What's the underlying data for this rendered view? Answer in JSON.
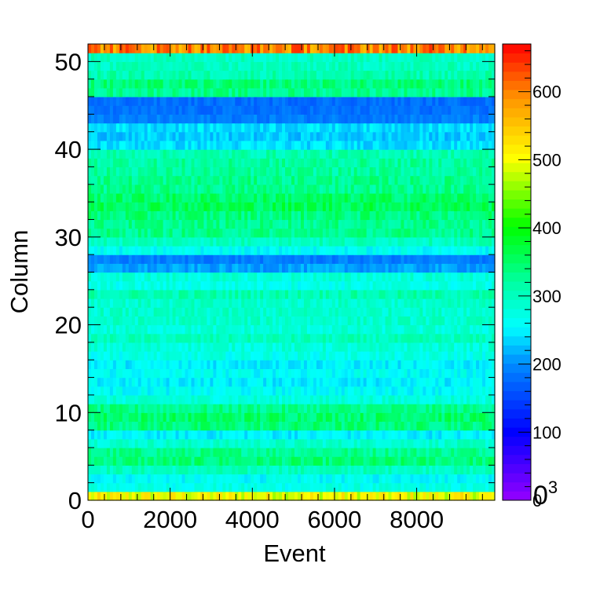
{
  "chart_data": {
    "type": "heatmap",
    "title": "",
    "xlabel": "Event",
    "ylabel": "Column",
    "xlim": [
      0,
      9900
    ],
    "ylim": [
      0,
      52
    ],
    "x_ticks": [
      "0",
      "2000",
      "4000",
      "6000",
      "8000"
    ],
    "y_ticks": [
      "0",
      "10",
      "20",
      "30",
      "40",
      "50"
    ],
    "x_events": 9900,
    "columns": 52,
    "column_mean_values": [
      500,
      270,
      260,
      300,
      340,
      330,
      290,
      250,
      340,
      350,
      330,
      280,
      260,
      250,
      260,
      250,
      270,
      280,
      300,
      280,
      290,
      290,
      290,
      310,
      270,
      280,
      210,
      190,
      260,
      300,
      330,
      330,
      340,
      360,
      350,
      330,
      330,
      320,
      320,
      310,
      240,
      230,
      240,
      190,
      180,
      180,
      330,
      340,
      310,
      300,
      300,
      600
    ],
    "colorbar": {
      "min": 0,
      "max": 670,
      "ticks": [
        "0",
        "100",
        "200",
        "300",
        "400",
        "500",
        "600"
      ],
      "multiplier_label": "0",
      "multiplier_exponent": "3"
    },
    "palette": "rainbow (violet→blue→cyan→green→yellow→orange→red)",
    "grid": false,
    "legend": "colorbar-right"
  }
}
